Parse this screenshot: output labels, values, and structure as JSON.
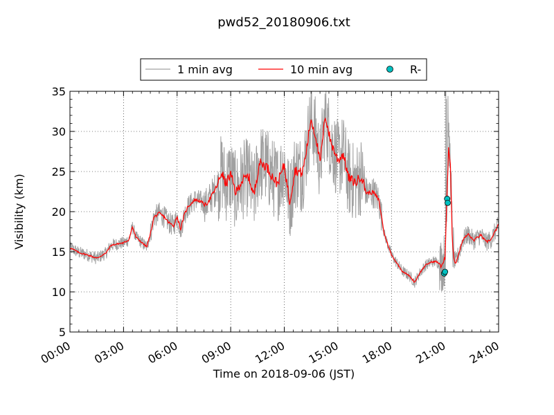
{
  "chart_data": {
    "type": "line",
    "title": "pwd52_20180906.txt",
    "xlabel": "Time on 2018-09-06 (JST)",
    "ylabel": "Visibility (km)",
    "xlim": [
      0,
      24
    ],
    "ylim": [
      5,
      35
    ],
    "x_ticks": [
      0,
      3,
      6,
      9,
      12,
      15,
      18,
      21,
      24
    ],
    "x_tick_labels": [
      "00:00",
      "03:00",
      "06:00",
      "09:00",
      "12:00",
      "15:00",
      "18:00",
      "21:00",
      "24:00"
    ],
    "y_ticks": [
      5,
      10,
      15,
      20,
      25,
      30,
      35
    ],
    "y_tick_labels": [
      "5",
      "10",
      "15",
      "20",
      "25",
      "30",
      "35"
    ],
    "grid": true,
    "legend_position": "top-center",
    "legend": [
      {
        "label": "1 min avg",
        "color": "#a0a0a0",
        "marker": "line"
      },
      {
        "label": "10 min avg",
        "color": "#ff0000",
        "marker": "line"
      },
      {
        "label": "R-",
        "color": "#00c0c0",
        "marker": "circle"
      }
    ],
    "series": [
      {
        "name": "10 min avg",
        "color": "#ff0000",
        "x": [
          0,
          0.5,
          1.0,
          1.5,
          2.0,
          2.3,
          2.7,
          3.0,
          3.3,
          3.5,
          3.7,
          4.0,
          4.3,
          4.5,
          4.7,
          5.0,
          5.3,
          5.5,
          5.8,
          6.0,
          6.2,
          6.4,
          6.6,
          7.0,
          7.3,
          7.6,
          8.0,
          8.3,
          8.5,
          8.7,
          9.0,
          9.3,
          9.6,
          10.0,
          10.3,
          10.6,
          11.0,
          11.3,
          11.6,
          12.0,
          12.3,
          12.6,
          13.0,
          13.2,
          13.5,
          13.8,
          14.0,
          14.3,
          14.6,
          15.0,
          15.3,
          15.6,
          16.0,
          16.3,
          16.6,
          17.0,
          17.3,
          17.6,
          18.0,
          18.3,
          18.6,
          19.0,
          19.3,
          19.6,
          19.9,
          20.2,
          20.5,
          20.8,
          21.0,
          21.1,
          21.2,
          21.3,
          21.4,
          21.5,
          21.6,
          21.8,
          22.0,
          22.3,
          22.6,
          23.0,
          23.3,
          23.6,
          24.0
        ],
        "values": [
          15.5,
          14.9,
          14.6,
          14.2,
          14.8,
          15.8,
          16.0,
          16.1,
          16.5,
          18.1,
          16.8,
          16.2,
          15.6,
          17.2,
          19.3,
          19.8,
          19.3,
          18.7,
          18.2,
          19.4,
          17.8,
          19.6,
          20.6,
          21.5,
          21.3,
          20.8,
          22.2,
          23.5,
          25.0,
          23.4,
          24.6,
          22.3,
          23.8,
          24.4,
          22.0,
          26.1,
          25.7,
          24.5,
          23.5,
          25.8,
          21.2,
          25.2,
          24.8,
          27.0,
          31.6,
          29.0,
          26.0,
          32.0,
          28.7,
          26.4,
          27.2,
          24.2,
          23.6,
          24.5,
          22.3,
          22.4,
          21.4,
          17.2,
          14.6,
          13.6,
          12.6,
          12.0,
          11.2,
          12.4,
          13.3,
          13.7,
          13.8,
          13.3,
          14.1,
          21.0,
          28.0,
          26.3,
          17.0,
          14.0,
          13.6,
          15.0,
          16.5,
          17.2,
          16.4,
          17.1,
          16.2,
          16.6,
          18.4
        ]
      },
      {
        "name": "R-",
        "color": "#00c0c0",
        "type": "scatter",
        "x": [
          20.95,
          21.0,
          21.12,
          21.15
        ],
        "values": [
          12.3,
          12.5,
          21.6,
          21.1
        ]
      }
    ]
  }
}
